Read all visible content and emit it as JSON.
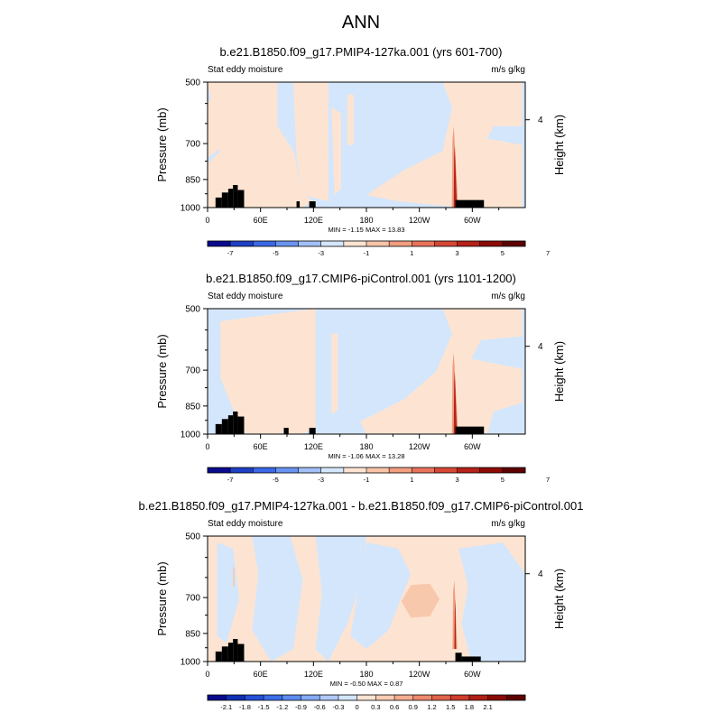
{
  "page": {
    "title": "ANN"
  },
  "colors": {
    "land_mask": "#000000",
    "axis": "#000000",
    "background": "#ffffff"
  },
  "chart_data": [
    {
      "type": "heatmap",
      "title": "b.e21.B1850.f09_g17.PMIP4-127ka.001 (yrs 601-700)",
      "left_string": "Stat eddy moisture",
      "right_string": "m/s g/kg",
      "ylabel": "Pressure (mb)",
      "y2label": "Height (km)",
      "yticks": [
        "500",
        "700",
        "850",
        "1000"
      ],
      "y2ticks": [
        "4"
      ],
      "xticks": [
        "0",
        "60E",
        "120E",
        "180",
        "120W",
        "60W"
      ],
      "xlim": [
        0,
        360
      ],
      "ylim": [
        1000,
        500
      ],
      "stats": "MIN =  -1.15  MAX =  13.83",
      "colorbar_labels": [
        "-7",
        "-5",
        "-3",
        "-1",
        "1",
        "3",
        "5",
        "7"
      ],
      "colorbar_colors": [
        "#0a0a8c",
        "#1f3fc4",
        "#3a68e6",
        "#6a93f0",
        "#a2bff7",
        "#d4e6fb",
        "#fde4d2",
        "#f8c4a8",
        "#f19d7f",
        "#e8735a",
        "#d64733",
        "#b62218",
        "#8c0b06",
        "#5e0000"
      ]
    },
    {
      "type": "heatmap",
      "title": "b.e21.B1850.f09_g17.CMIP6-piControl.001 (yrs 1101-1200)",
      "left_string": "Stat eddy moisture",
      "right_string": "m/s g/kg",
      "ylabel": "Pressure (mb)",
      "y2label": "Height (km)",
      "yticks": [
        "500",
        "700",
        "850",
        "1000"
      ],
      "y2ticks": [
        "4"
      ],
      "xticks": [
        "0",
        "60E",
        "120E",
        "180",
        "120W",
        "60W"
      ],
      "xlim": [
        0,
        360
      ],
      "ylim": [
        1000,
        500
      ],
      "stats": "MIN =  -1.06  MAX =  13.28",
      "colorbar_labels": [
        "-7",
        "-5",
        "-3",
        "-1",
        "1",
        "3",
        "5",
        "7"
      ],
      "colorbar_colors": [
        "#0a0a8c",
        "#1f3fc4",
        "#3a68e6",
        "#6a93f0",
        "#a2bff7",
        "#d4e6fb",
        "#fde4d2",
        "#f8c4a8",
        "#f19d7f",
        "#e8735a",
        "#d64733",
        "#b62218",
        "#8c0b06",
        "#5e0000"
      ]
    },
    {
      "type": "heatmap",
      "title": "b.e21.B1850.f09_g17.PMIP4-127ka.001 - b.e21.B1850.f09_g17.CMIP6-piControl.001",
      "left_string": "Stat eddy moisture",
      "right_string": "m/s g/kg",
      "ylabel": "Pressure (mb)",
      "y2label": "Height (km)",
      "yticks": [
        "500",
        "700",
        "850",
        "1000"
      ],
      "y2ticks": [
        "4"
      ],
      "xticks": [
        "0",
        "60E",
        "120E",
        "180",
        "120W",
        "60W"
      ],
      "xlim": [
        0,
        360
      ],
      "ylim": [
        1000,
        500
      ],
      "stats": "MIN =  -0.50  MAX =   0.87",
      "colorbar_labels": [
        "-2.1",
        "-1.8",
        "-1.5",
        "-1.2",
        "-0.9",
        "-0.6",
        "-0.3",
        "0",
        "0.3",
        "0.6",
        "0.9",
        "1.2",
        "1.5",
        "1.8",
        "2.1"
      ],
      "colorbar_colors": [
        "#0a0a8c",
        "#1030b4",
        "#2550d8",
        "#3c6ee8",
        "#5c8cf0",
        "#86aaf4",
        "#b0c9f8",
        "#d4e6fb",
        "#fde4d2",
        "#fbcdb4",
        "#f5ad90",
        "#ee8a6c",
        "#e2634a",
        "#cf3d2a",
        "#b01e14",
        "#8a0a06",
        "#5e0000"
      ]
    }
  ]
}
